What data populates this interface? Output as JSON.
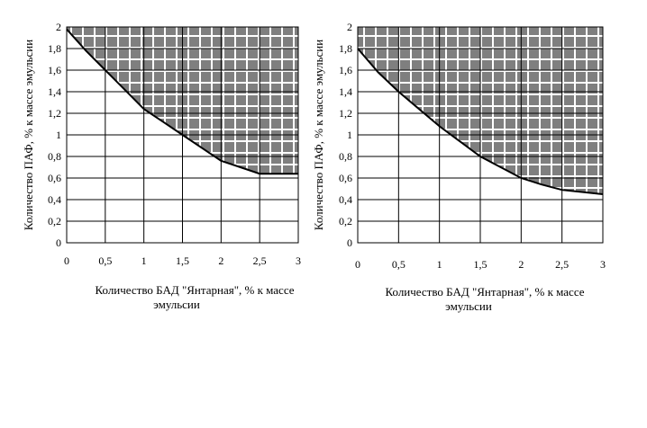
{
  "chart_data": [
    {
      "type": "area",
      "xlabel": "Количество БАД \"Янтарная\", % к массе эмульсии",
      "xlabel_lines": [
        "Количество БАД \"Янтарная\", % к массе",
        "эмульсии"
      ],
      "ylabel": "Количество ПАФ, % к массе эмульсии",
      "xlim": [
        0,
        3
      ],
      "ylim": [
        0,
        2
      ],
      "x_ticks": [
        "0",
        "0,5",
        "1",
        "1,5",
        "2",
        "2,5",
        "3"
      ],
      "y_ticks": [
        "0",
        "0,2",
        "0,4",
        "0,6",
        "0,8",
        "1",
        "1,2",
        "1,4",
        "1,6",
        "1,8",
        "2"
      ],
      "grid": true,
      "series": [
        {
          "values": [
            {
              "x": 0,
              "y": 1.98
            },
            {
              "x": 0.25,
              "y": 1.78
            },
            {
              "x": 0.5,
              "y": 1.6
            },
            {
              "x": 0.75,
              "y": 1.42
            },
            {
              "x": 1.0,
              "y": 1.24
            },
            {
              "x": 1.25,
              "y": 1.12
            },
            {
              "x": 1.5,
              "y": 1.0
            },
            {
              "x": 1.75,
              "y": 0.88
            },
            {
              "x": 2.0,
              "y": 0.76
            },
            {
              "x": 2.25,
              "y": 0.7
            },
            {
              "x": 2.5,
              "y": 0.64
            },
            {
              "x": 3.0,
              "y": 0.64
            }
          ]
        }
      ]
    },
    {
      "type": "area",
      "xlabel": "Количество БАД \"Янтарная\", % к массе эмульсии",
      "xlabel_lines": [
        "Количество БАД \"Янтарная\", % к массе",
        "эмульсии"
      ],
      "ylabel": "Количество ПАФ, % к массе эмульсии",
      "xlim": [
        0,
        3
      ],
      "ylim": [
        0,
        2
      ],
      "x_ticks": [
        "0",
        "0,5",
        "1",
        "1,5",
        "2",
        "2,5",
        "3"
      ],
      "y_ticks": [
        "0",
        "0,2",
        "0,4",
        "0,6",
        "0,8",
        "1",
        "1,2",
        "1,4",
        "1,6",
        "1,8",
        "2"
      ],
      "grid": true,
      "series": [
        {
          "values": [
            {
              "x": 0,
              "y": 1.8
            },
            {
              "x": 0.25,
              "y": 1.58
            },
            {
              "x": 0.5,
              "y": 1.4
            },
            {
              "x": 0.75,
              "y": 1.24
            },
            {
              "x": 1.0,
              "y": 1.08
            },
            {
              "x": 1.25,
              "y": 0.94
            },
            {
              "x": 1.5,
              "y": 0.8
            },
            {
              "x": 1.75,
              "y": 0.7
            },
            {
              "x": 2.0,
              "y": 0.6
            },
            {
              "x": 2.25,
              "y": 0.54
            },
            {
              "x": 2.5,
              "y": 0.49
            },
            {
              "x": 3.0,
              "y": 0.45
            }
          ]
        }
      ]
    }
  ]
}
